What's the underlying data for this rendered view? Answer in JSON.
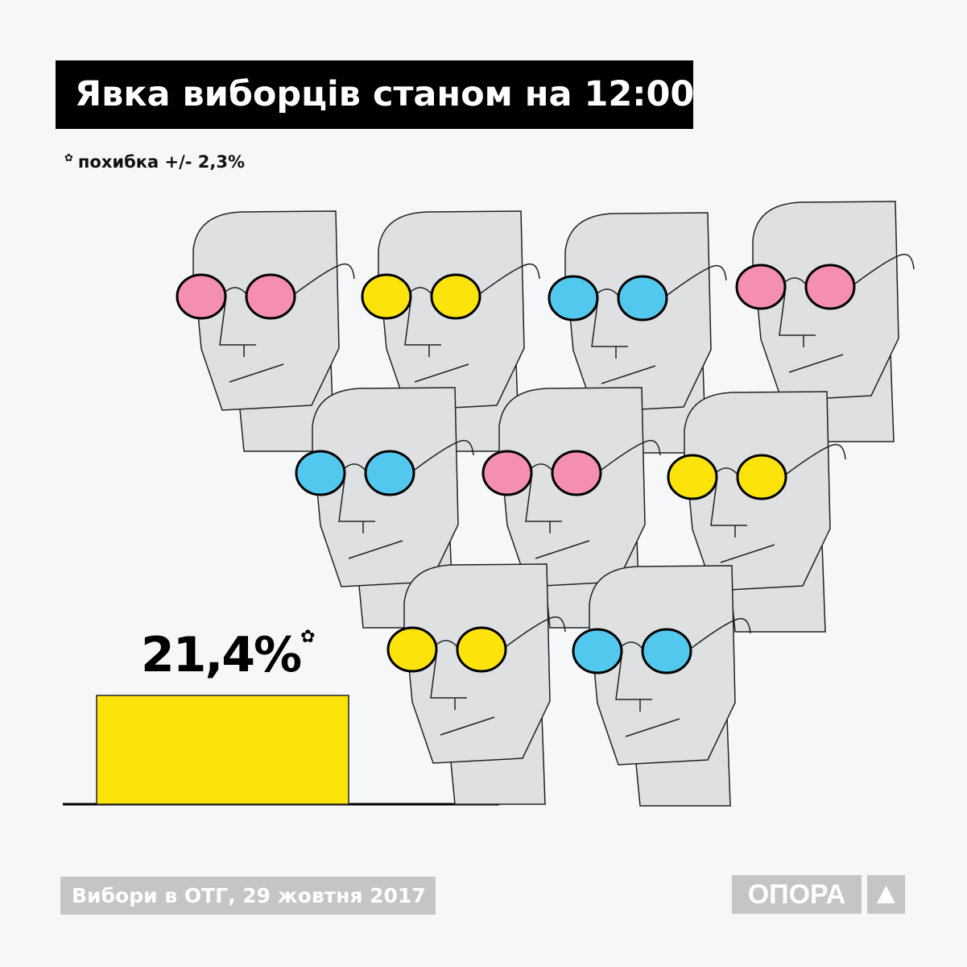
{
  "title": "Явка виборців станом на 12:00",
  "note": {
    "marker": "✿",
    "text": "похибка +/- 2,3%"
  },
  "footer": "Вибори в ОТГ, 29 жовтня 2017",
  "logo": {
    "text": "ОПОРА",
    "icon": "triangle-up-icon"
  },
  "colors": {
    "bar": "#fbe30b",
    "pink": "#f48fb1",
    "yellow": "#fbe30b",
    "blue": "#52c8ef",
    "face": "#dfe0e2",
    "background": "#f6f7f9"
  },
  "heads": [
    "pink",
    "yellow",
    "blue",
    "pink",
    "blue",
    "pink",
    "yellow",
    "yellow",
    "blue"
  ],
  "chart_data": {
    "type": "bar",
    "values": [
      21.4
    ],
    "labels": [
      "21,4%"
    ],
    "label_marker": "✿",
    "title": "Явка виборців станом на 12:00",
    "error_margin": 2.3,
    "ylim": [
      0,
      100
    ]
  }
}
